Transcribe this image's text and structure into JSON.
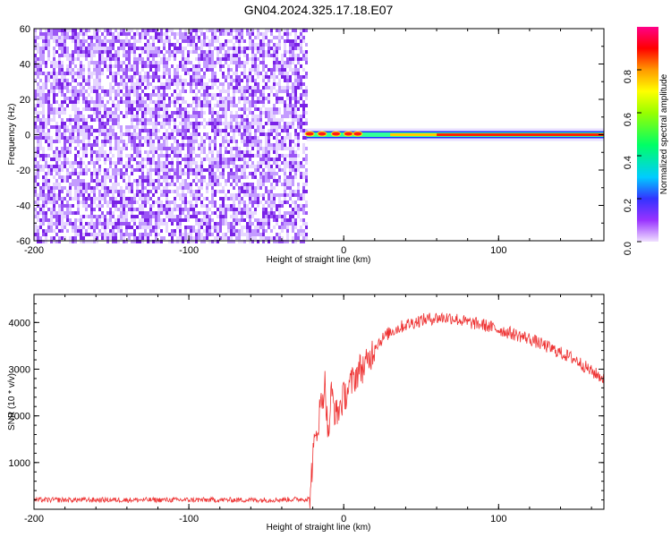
{
  "figure": {
    "title": "GN04.2024.325.17.18.E07"
  },
  "chart_data": [
    {
      "type": "heatmap",
      "xlabel": "Height of straight line (km)",
      "ylabel": "Frequency (Hz)",
      "xlim": [
        -200,
        168
      ],
      "ylim": [
        -60,
        60
      ],
      "xticks": [
        "-200",
        "-100",
        "0",
        "100"
      ],
      "yticks": [
        "60",
        "40",
        "20",
        "0",
        "-20",
        "-40",
        "-60"
      ],
      "colorbar": {
        "label": "Normalized spectral amplitude",
        "range": [
          0,
          1
        ],
        "ticks": [
          "0.0",
          "0.2",
          "0.4",
          "0.6",
          "0.8"
        ]
      },
      "regions": [
        {
          "x_range": [
            -200,
            -24
          ],
          "description_values": "broadband noise, amplitude ~0.05-0.2 across -60..60 Hz"
        },
        {
          "x_range": [
            -24,
            168
          ],
          "tone_frequency_hz": 0,
          "tone_halfwidth_hz": 2,
          "peak_amplitude": 1.0
        }
      ]
    },
    {
      "type": "line",
      "xlabel": "Height of straight line (km)",
      "ylabel": "SNR (10 * v/v)",
      "xlim": [
        -200,
        168
      ],
      "ylim": [
        0,
        4600
      ],
      "xticks": [
        "-200",
        "-100",
        "0",
        "100"
      ],
      "yticks": [
        "4000",
        "3000",
        "2000",
        "1000"
      ],
      "color": "#ee3333",
      "series": [
        {
          "x": [
            -200,
            -150,
            -100,
            -50,
            -22,
            -20,
            -15,
            -12,
            -10,
            -8,
            -5,
            0,
            5,
            10,
            15,
            20,
            30,
            40,
            50,
            60,
            70,
            80,
            90,
            100,
            110,
            120,
            130,
            140,
            150,
            160,
            168
          ],
          "values": [
            200,
            200,
            200,
            200,
            220,
            1100,
            2200,
            2700,
            1500,
            2500,
            2000,
            2400,
            2700,
            3000,
            3100,
            3500,
            3800,
            3950,
            4050,
            4100,
            4100,
            4000,
            3950,
            3850,
            3750,
            3650,
            3500,
            3350,
            3200,
            2950,
            2800
          ]
        }
      ]
    }
  ]
}
